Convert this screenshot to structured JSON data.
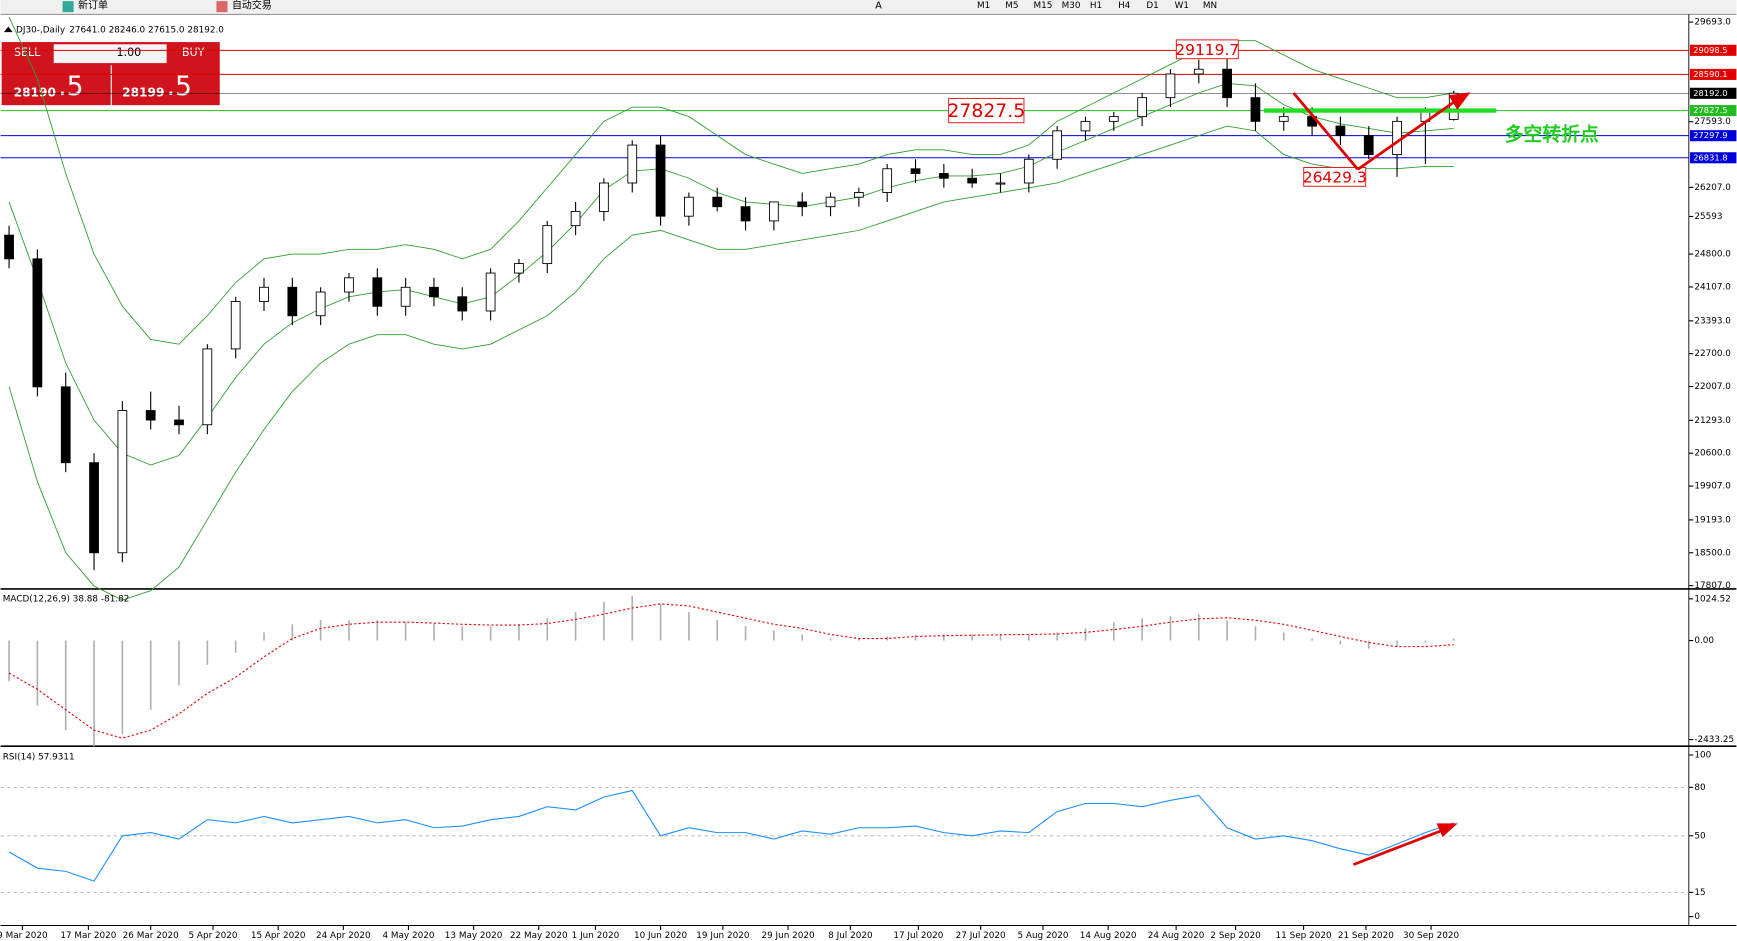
{
  "toolbar": {
    "new_order": "新订单",
    "auto_trading": "自动交易",
    "timeframes": [
      "M1",
      "M5",
      "M15",
      "M30",
      "H1",
      "H4",
      "D1",
      "W1",
      "MN"
    ],
    "text_tool": "A"
  },
  "trade_panel": {
    "sell": "SELL",
    "buy": "BUY",
    "volume": "1.00",
    "sell_big": "28190",
    "sell_small": ".5",
    "buy_big": "28199",
    "buy_small": ".5"
  },
  "chart_data": [
    {
      "type": "candlestick",
      "title": "DJ30-,Daily",
      "ohlc_header": "27641.0 28246.0 27615.0 28192.0",
      "open": [
        25200,
        24700,
        22000,
        20400,
        18500,
        21500,
        21300,
        21200,
        22800,
        23800,
        24100,
        23500,
        24000,
        24300,
        23700,
        24100,
        23900,
        23600,
        24400,
        24600,
        25400,
        25700,
        26300,
        27100,
        25600,
        26000,
        25800,
        25500,
        25900,
        25800,
        26000,
        26100,
        26600,
        26500,
        26400,
        26300,
        26300,
        26800,
        27400,
        27600,
        27700,
        28100,
        28600,
        28700,
        28100,
        27600,
        27700,
        27500,
        27300,
        26900,
        27600,
        27641
      ],
      "high": [
        25400,
        24900,
        22300,
        20600,
        21700,
        21900,
        21600,
        22900,
        23900,
        24300,
        24300,
        24100,
        24400,
        24500,
        24300,
        24300,
        24100,
        24500,
        24700,
        25500,
        25900,
        26400,
        27200,
        27300,
        26100,
        26200,
        26000,
        25900,
        26100,
        26100,
        26200,
        26700,
        26800,
        26700,
        26600,
        26500,
        26900,
        27500,
        27700,
        27800,
        28200,
        28700,
        28900,
        29119.7,
        28400,
        27900,
        27900,
        27700,
        27500,
        27700,
        27900,
        28246
      ],
      "low": [
        24500,
        21800,
        20200,
        18130,
        18300,
        21100,
        21000,
        21000,
        22600,
        23600,
        23300,
        23300,
        23800,
        23500,
        23500,
        23700,
        23400,
        23400,
        24200,
        24400,
        25200,
        25500,
        26100,
        25400,
        25400,
        25700,
        25300,
        25300,
        25600,
        25600,
        25800,
        25900,
        26300,
        26200,
        26200,
        26100,
        26100,
        26600,
        27200,
        27400,
        27500,
        27900,
        28400,
        27900,
        27400,
        27400,
        27300,
        27100,
        26800,
        26429.3,
        26700,
        27615
      ],
      "close": [
        24700,
        22000,
        20400,
        18500,
        21500,
        21300,
        21200,
        22800,
        23800,
        24100,
        23500,
        24000,
        24300,
        23700,
        24100,
        23900,
        23600,
        24400,
        24600,
        25400,
        25700,
        26300,
        27100,
        25600,
        26000,
        25800,
        25500,
        25900,
        25800,
        26000,
        26100,
        26600,
        26500,
        26400,
        26300,
        26300,
        26800,
        27400,
        27600,
        27700,
        28100,
        28600,
        28700,
        28100,
        27600,
        27700,
        27500,
        27300,
        26900,
        27600,
        27800,
        28192
      ],
      "upper_band": [
        29800,
        28500,
        26500,
        24800,
        23700,
        23000,
        22900,
        23500,
        24200,
        24700,
        24800,
        24800,
        24900,
        24900,
        25000,
        24900,
        24700,
        24900,
        25500,
        26200,
        26900,
        27600,
        27900,
        27900,
        27700,
        27300,
        26900,
        26700,
        26500,
        26600,
        26700,
        26900,
        27000,
        27000,
        26900,
        26900,
        27100,
        27600,
        27900,
        28200,
        28500,
        28800,
        29100,
        29300,
        29300,
        29000,
        28700,
        28500,
        28300,
        28100,
        28100,
        28200
      ],
      "middle_band": [
        25900,
        24250,
        22500,
        21300,
        20600,
        20350,
        20550,
        21350,
        22200,
        22900,
        23350,
        23650,
        23900,
        24000,
        24050,
        23900,
        23750,
        23900,
        24350,
        24850,
        25450,
        26150,
        26550,
        26600,
        26400,
        26100,
        25900,
        25850,
        25800,
        25900,
        26000,
        26200,
        26350,
        26450,
        26450,
        26500,
        26650,
        26950,
        27200,
        27450,
        27700,
        27950,
        28200,
        28400,
        28350,
        27950,
        27700,
        27550,
        27450,
        27350,
        27400,
        27450
      ],
      "lower_band": [
        22000,
        20000,
        18500,
        17800,
        17500,
        17700,
        18200,
        19200,
        20200,
        21100,
        21900,
        22500,
        22900,
        23100,
        23100,
        22900,
        22800,
        22900,
        23200,
        23500,
        24000,
        24700,
        25200,
        25300,
        25100,
        24900,
        24900,
        25000,
        25100,
        25200,
        25300,
        25500,
        25700,
        25900,
        26000,
        26100,
        26200,
        26300,
        26500,
        26700,
        26900,
        27100,
        27300,
        27500,
        27400,
        26900,
        26700,
        26600,
        26600,
        26600,
        26650,
        26650
      ],
      "band_color": "#2e9e2e",
      "levels": [
        29098.5,
        28590.1,
        {
          "value": 28192,
          "label": "28192.0"
        },
        27827.5,
        27297.9,
        26831.8
      ],
      "level_colors": [
        "#e00000",
        "#e00000",
        "#000000",
        "#22bb22",
        "#0000dd",
        "#0000dd"
      ],
      "annotations": [
        {
          "value": 29119.7,
          "at": 42.3
        },
        {
          "value": 27827.5,
          "at": 34.5
        },
        {
          "value": 26429.3,
          "at": 46.8
        }
      ],
      "pivot_label": "多空转折点",
      "xlim": [
        -0.3,
        59.3
      ],
      "ylim": [
        17760,
        29833
      ],
      "yticks": [
        {
          "value": 29693,
          "label": "29693.0"
        },
        {
          "value": 27593,
          "label": "27593.0"
        },
        {
          "value": 26207,
          "label": "26207.0"
        },
        25593,
        {
          "value": 24800,
          "label": "24800.0"
        },
        {
          "value": 24107,
          "label": "24107.0"
        },
        {
          "value": 23393,
          "label": "23393.0"
        },
        {
          "value": 22700,
          "label": "22700.0"
        },
        {
          "value": 22007,
          "label": "22007.0"
        },
        {
          "value": 21293,
          "label": "21293.0"
        },
        {
          "value": 20600,
          "label": "20600.0"
        },
        {
          "value": 19907,
          "label": "19907.0"
        },
        {
          "value": 19193,
          "label": "19193.0"
        },
        {
          "value": 18500,
          "label": "18500.0"
        },
        {
          "value": 17807,
          "label": "17807.0"
        }
      ],
      "xticks": [
        {
          "value": 0.47,
          "label": "9 Mar 2020"
        },
        {
          "value": 2.8,
          "label": "17 Mar 2020"
        },
        {
          "value": 5.0,
          "label": "26 Mar 2020"
        },
        {
          "value": 7.2,
          "label": "5 Apr 2020"
        },
        {
          "value": 9.5,
          "label": "15 Apr 2020"
        },
        {
          "value": 11.8,
          "label": "24 Apr 2020"
        },
        {
          "value": 14.1,
          "label": "4 May 2020"
        },
        {
          "value": 16.4,
          "label": "13 May 2020"
        },
        {
          "value": 18.7,
          "label": "22 May 2020"
        },
        {
          "value": 20.7,
          "label": "1 Jun 2020"
        },
        {
          "value": 23.0,
          "label": "10 Jun 2020"
        },
        {
          "value": 25.2,
          "label": "19 Jun 2020"
        },
        {
          "value": 27.5,
          "label": "29 Jun 2020"
        },
        {
          "value": 29.7,
          "label": "8 Jul 2020"
        },
        {
          "value": 32.1,
          "label": "17 Jul 2020"
        },
        {
          "value": 34.3,
          "label": "27 Jul 2020"
        },
        {
          "value": 36.5,
          "label": "5 Aug 2020"
        },
        {
          "value": 38.8,
          "label": "14 Aug 2020"
        },
        {
          "value": 41.2,
          "label": "24 Aug 2020"
        },
        {
          "value": 43.3,
          "label": "2 Sep 2020"
        },
        {
          "value": 45.7,
          "label": "11 Sep 2020"
        },
        {
          "value": 47.9,
          "label": "21 Sep 2020"
        },
        {
          "value": 50.2,
          "label": "30 Sep 2020"
        }
      ]
    },
    {
      "type": "macd",
      "title": "MACD(12,26,9) 38.88 -81.82",
      "histogram": [
        -1000,
        -1600,
        -2200,
        -2600,
        -2300,
        -1700,
        -1100,
        -600,
        -300,
        200,
        400,
        500,
        500,
        500,
        450,
        400,
        350,
        350,
        400,
        550,
        700,
        950,
        1100,
        900,
        700,
        500,
        350,
        250,
        150,
        50,
        50,
        100,
        150,
        150,
        150,
        150,
        150,
        200,
        300,
        450,
        550,
        600,
        650,
        500,
        350,
        200,
        50,
        -100,
        -200,
        -150,
        -50,
        50
      ],
      "signal": [
        -800,
        -1200,
        -1700,
        -2200,
        -2400,
        -2200,
        -1800,
        -1300,
        -900,
        -400,
        50,
        300,
        400,
        450,
        450,
        430,
        400,
        380,
        380,
        420,
        520,
        650,
        800,
        900,
        850,
        700,
        550,
        400,
        300,
        150,
        50,
        50,
        100,
        120,
        130,
        140,
        150,
        160,
        200,
        270,
        350,
        450,
        530,
        560,
        500,
        400,
        250,
        100,
        -50,
        -150,
        -150,
        -100
      ],
      "histogram_color": "#b0b0b0",
      "signal_color": "#e00000",
      "xlim": [
        -0.3,
        59.3
      ],
      "ylim": [
        -2541,
        1213
      ],
      "yticks": [
        1024.52,
        {
          "value": 0,
          "label": "0.00"
        },
        -2433.25
      ]
    },
    {
      "type": "line",
      "title": "RSI(14) 57.9311",
      "values": [
        40,
        30,
        28,
        22,
        50,
        52,
        48,
        60,
        58,
        62,
        58,
        60,
        62,
        58,
        60,
        55,
        56,
        60,
        62,
        68,
        66,
        74,
        78,
        50,
        55,
        52,
        52,
        48,
        53,
        51,
        55,
        55,
        56,
        52,
        50,
        53,
        52,
        65,
        70,
        70,
        68,
        72,
        75,
        55,
        48,
        50,
        47,
        42,
        38,
        45,
        52,
        58
      ],
      "color": "#1e90ff",
      "xlim": [
        -0.3,
        59.3
      ],
      "ylim": [
        -4.8,
        104.1
      ],
      "yticks": [
        100,
        80,
        50,
        15,
        0
      ],
      "levels": [
        80,
        50,
        15
      ]
    }
  ]
}
